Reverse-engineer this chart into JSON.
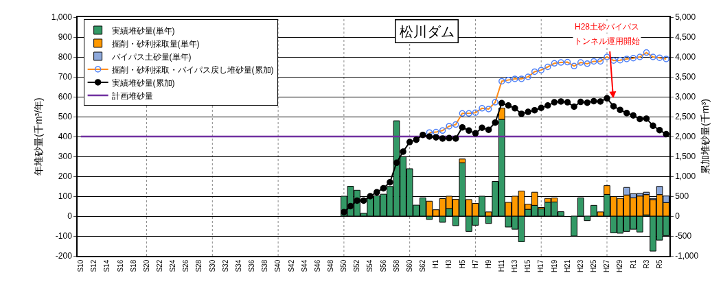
{
  "chart_data": {
    "type": "bar",
    "title": "松川ダム",
    "xlabel": null,
    "ylabel": "年堆砂量(千m³/年)",
    "y2label": "累加堆砂量(千m³)",
    "categories": [
      "S10",
      null,
      "S12",
      null,
      "S14",
      null,
      "S16",
      null,
      "S18",
      null,
      "S20",
      null,
      "S22",
      null,
      "S24",
      null,
      "S26",
      null,
      "S28",
      null,
      "S30",
      null,
      "S32",
      null,
      "S34",
      null,
      "S36",
      null,
      "S38",
      null,
      "S40",
      null,
      "S42",
      null,
      "S44",
      null,
      "S46",
      null,
      "S48",
      null,
      "S50",
      null,
      "S52",
      null,
      "S54",
      null,
      "S56",
      null,
      "S58",
      null,
      "S60",
      null,
      "S62",
      null,
      "H1",
      null,
      "H3",
      null,
      "H5",
      null,
      "H7",
      null,
      "H9",
      null,
      "H11",
      null,
      "H13",
      null,
      "H15",
      null,
      "H17",
      null,
      "H19",
      null,
      "H21",
      null,
      "H23",
      null,
      "H25",
      null,
      "H27",
      null,
      "H29",
      null,
      "R1",
      null,
      "R3",
      null,
      "R5",
      null
    ],
    "stacked": true,
    "series": [
      {
        "name": "実績堆砂量(単年)",
        "color": "#339966",
        "values": [
          null,
          null,
          null,
          null,
          null,
          null,
          null,
          null,
          null,
          null,
          null,
          null,
          null,
          null,
          null,
          null,
          null,
          null,
          null,
          null,
          null,
          null,
          null,
          null,
          null,
          null,
          null,
          null,
          null,
          null,
          null,
          null,
          null,
          null,
          null,
          null,
          null,
          null,
          null,
          null,
          100,
          150,
          130,
          14,
          95,
          102,
          110,
          149,
          479,
          299,
          238,
          55,
          92,
          -17,
          null,
          -31,
          38,
          -48,
          268,
          -77,
          -46,
          100,
          -37,
          174,
          486,
          -55,
          -66,
          -129,
          34,
          54,
          36,
          70,
          71,
          22,
          null,
          -100,
          92,
          -23,
          54,
          null,
          109,
          -84,
          -86,
          -77,
          -66,
          -80,
          6,
          -176,
          -121,
          -98
        ]
      },
      {
        "name": "掘削・砂利採取量(単年)",
        "color": "#ff9900",
        "values": [
          null,
          null,
          null,
          null,
          null,
          null,
          null,
          null,
          null,
          null,
          null,
          null,
          null,
          null,
          null,
          null,
          null,
          null,
          null,
          null,
          null,
          null,
          null,
          null,
          null,
          null,
          null,
          null,
          null,
          null,
          null,
          null,
          null,
          null,
          null,
          null,
          null,
          null,
          null,
          null,
          null,
          null,
          null,
          null,
          null,
          null,
          null,
          null,
          null,
          null,
          null,
          null,
          null,
          75,
          32,
          88,
          62,
          84,
          19,
          83,
          64,
          null,
          21,
          null,
          57,
          69,
          100,
          126,
          26,
          66,
          7,
          19,
          20,
          null,
          null,
          null,
          null,
          null,
          null,
          21,
          44,
          98,
          89,
          106,
          92,
          101,
          102,
          83,
          108,
          68
        ]
      },
      {
        "name": "バイパス土砂量(単年)",
        "color": "#8ea9db",
        "values": [
          null,
          null,
          null,
          null,
          null,
          null,
          null,
          null,
          null,
          null,
          null,
          null,
          null,
          null,
          null,
          null,
          null,
          null,
          null,
          null,
          null,
          null,
          null,
          null,
          null,
          null,
          null,
          null,
          null,
          null,
          null,
          null,
          null,
          null,
          null,
          null,
          null,
          null,
          null,
          null,
          null,
          null,
          null,
          null,
          null,
          null,
          null,
          null,
          null,
          null,
          null,
          null,
          null,
          null,
          null,
          null,
          null,
          null,
          null,
          null,
          null,
          null,
          null,
          null,
          null,
          null,
          null,
          null,
          null,
          null,
          null,
          null,
          null,
          null,
          null,
          null,
          null,
          null,
          null,
          null,
          null,
          null,
          null,
          38,
          20,
          13,
          12,
          6,
          41,
          33
        ]
      },
      {
        "name": "掘削・砂利採取・バイパス戻し堆砂量(累加)",
        "type": "line",
        "axis": "y2",
        "color": "#ff8c1a",
        "colors": [
          "#4f81f7",
          "#4f81f7",
          "#4f81f7",
          "#4f81f7",
          "#4f81f7",
          "#4f81f7",
          "#4f81f7",
          "#4f81f7",
          "#4f81f7",
          "#4f81f7",
          "#4f81f7",
          "#4f81f7",
          "#4f81f7",
          "#4f81f7",
          "#4f81f7",
          "#4f81f7",
          "#4f81f7",
          "#4f81f7",
          "#4f81f7",
          "#4f81f7",
          "#4f81f7",
          "#4f81f7",
          "#4f81f7",
          "#4f81f7",
          "#4f81f7",
          "#4f81f7",
          "#4f81f7",
          "#4f81f7",
          "#4f81f7",
          "#4f81f7",
          "#4f81f7",
          "#4f81f7",
          "#4f81f7",
          "#4f81f7",
          "#4f81f7",
          "#4f81f7",
          "#4f81f7",
          "#4f81f7",
          "#4f81f7",
          "#4f81f7",
          "#4f81f7",
          "#4f81f7",
          "#4f81f7",
          "#4f81f7",
          "#4f81f7",
          "#4f81f7",
          "#4f81f7",
          "#4f81f7",
          "#4f81f7",
          "#4f81f7",
          "#4f81f7",
          "#4f81f7",
          "#4f81f7",
          "#4f81f7",
          "#4f81f7",
          "#4f81f7",
          "#4f81f7",
          "#4f81f7",
          "#4f81f7",
          "#4f81f7",
          "#4f81f7",
          "#4f81f7",
          "#4f81f7",
          "#4f81f7",
          "#4f81f7",
          "#4f81f7",
          "#4f81f7",
          "#4f81f7",
          "#4f81f7",
          "#4f81f7",
          "#4f81f7",
          "#4f81f7",
          "#4f81f7",
          "#4f81f7",
          "#4f81f7",
          "#4f81f7",
          "#4f81f7",
          "#4f81f7",
          "#4f81f7",
          "#4f81f7",
          "#4f81f7",
          "#4f81f7",
          "#4f81f7",
          "#4f81f7",
          "#4f81f7",
          "#4f81f7",
          "#4f81f7",
          "#4f81f7",
          "#4f81f7",
          "#4f81f7"
        ],
        "marker": "circle",
        "values": [
          null,
          null,
          null,
          null,
          null,
          null,
          null,
          null,
          null,
          null,
          null,
          null,
          null,
          null,
          null,
          null,
          null,
          null,
          null,
          null,
          null,
          null,
          null,
          null,
          null,
          null,
          null,
          null,
          null,
          null,
          null,
          null,
          null,
          null,
          null,
          null,
          null,
          null,
          null,
          null,
          null,
          null,
          null,
          null,
          null,
          null,
          null,
          null,
          null,
          null,
          null,
          null,
          null,
          2100,
          2110,
          2150,
          2260,
          2300,
          2580,
          2580,
          2600,
          2710,
          2690,
          2860,
          3390,
          3420,
          3450,
          3450,
          3500,
          3630,
          3670,
          3750,
          3840,
          3860,
          3870,
          3770,
          3860,
          3830,
          3890,
          3890,
          4000,
          3910,
          3920,
          3950,
          3970,
          4000,
          4110,
          4000,
          3980,
          3950
        ]
      },
      {
        "name": "実績堆砂量(累加)",
        "type": "line",
        "axis": "y2",
        "color": "#000000",
        "marker": "circle",
        "values": [
          null,
          null,
          null,
          null,
          null,
          null,
          null,
          null,
          null,
          null,
          null,
          null,
          null,
          null,
          null,
          null,
          null,
          null,
          null,
          null,
          null,
          null,
          null,
          null,
          null,
          null,
          null,
          null,
          null,
          null,
          null,
          null,
          null,
          null,
          null,
          null,
          null,
          null,
          null,
          null,
          100,
          250,
          390,
          390,
          500,
          600,
          700,
          850,
          1340,
          1620,
          1860,
          1920,
          2040,
          2000,
          1980,
          1950,
          1960,
          1950,
          2230,
          2150,
          2080,
          2220,
          2170,
          2350,
          2840,
          2780,
          2710,
          2570,
          2620,
          2660,
          2720,
          2780,
          2860,
          2880,
          2860,
          2750,
          2870,
          2850,
          2890,
          2880,
          2960,
          2760,
          2670,
          2590,
          2530,
          2440,
          2450,
          2270,
          2160,
          2060
        ]
      },
      {
        "name": "計画堆砂量",
        "type": "line",
        "color": "#7030a0",
        "marker": "none",
        "values": [
          400,
          400,
          400,
          400,
          400,
          400,
          400,
          400,
          400,
          400,
          400,
          400,
          400,
          400,
          400,
          400,
          400,
          400,
          400,
          400,
          400,
          400,
          400,
          400,
          400,
          400,
          400,
          400,
          400,
          400,
          400,
          400,
          400,
          400,
          400,
          400,
          400,
          400,
          400,
          400,
          400,
          400,
          400,
          400,
          400,
          400,
          400,
          400,
          400,
          400,
          400,
          400,
          400,
          400,
          400,
          400,
          400,
          400,
          400,
          400,
          400,
          400,
          400,
          400,
          400,
          400,
          400,
          400,
          400,
          400,
          400,
          400,
          400,
          400,
          400,
          400,
          400,
          400,
          400,
          400,
          400,
          400,
          400,
          400,
          400,
          400,
          400,
          400,
          400,
          400
        ]
      }
    ],
    "ylim": [
      -200,
      1000
    ],
    "yticks": [
      -200,
      -100,
      0,
      100,
      200,
      300,
      400,
      500,
      600,
      700,
      800,
      900,
      {
        "value": 1000,
        "label": "1,000"
      }
    ],
    "y2lim": [
      -1000,
      5000
    ],
    "y2ticks": [
      {
        "value": -1000,
        "label": "-1,000"
      },
      -500,
      0,
      500,
      {
        "value": 1000,
        "label": "1,000"
      },
      {
        "value": 1500,
        "label": "1,500"
      },
      {
        "value": 2000,
        "label": "2,000"
      },
      {
        "value": 2500,
        "label": "2,500"
      },
      {
        "value": 3000,
        "label": "3,000"
      },
      {
        "value": 3500,
        "label": "3,500"
      },
      {
        "value": 4000,
        "label": "4,000"
      },
      {
        "value": 4500,
        "label": "4,500"
      },
      {
        "value": 5000,
        "label": "5,000"
      }
    ],
    "annotations": [
      "H28土砂バイパス",
      "トンネル運用開始"
    ],
    "grid": true,
    "legend": "top left"
  }
}
